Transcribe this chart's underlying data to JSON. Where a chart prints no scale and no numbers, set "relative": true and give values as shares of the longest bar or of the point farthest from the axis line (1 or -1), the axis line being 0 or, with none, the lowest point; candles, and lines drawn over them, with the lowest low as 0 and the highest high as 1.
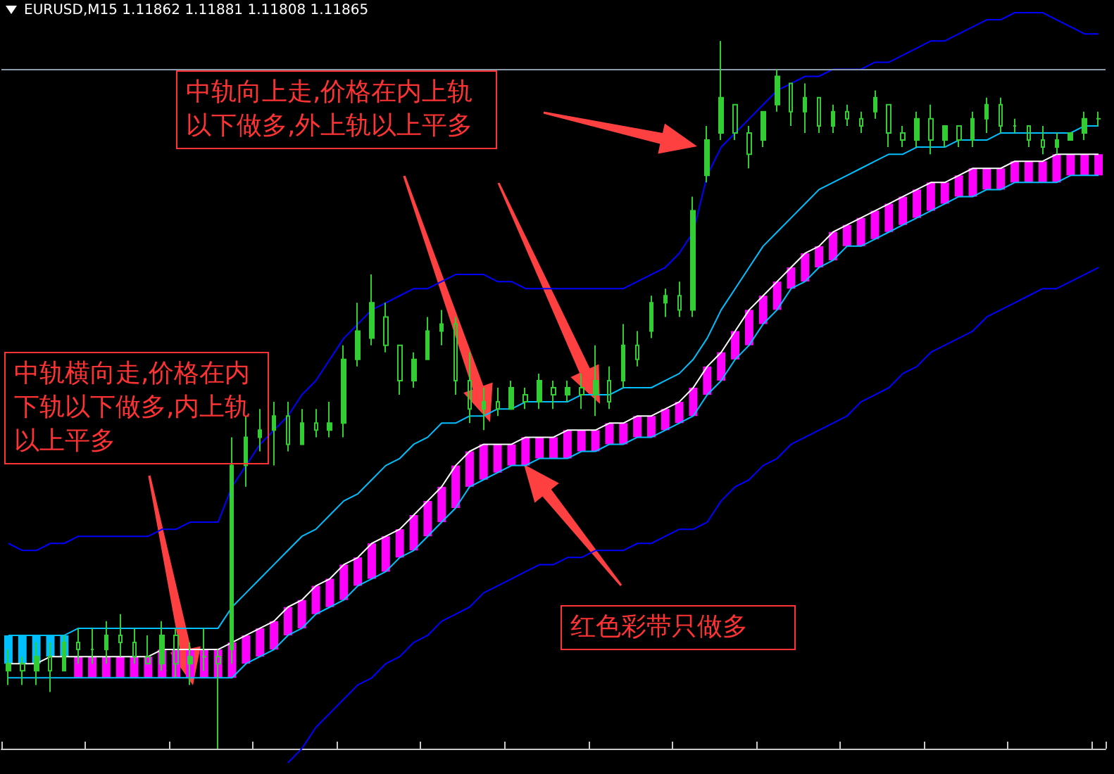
{
  "chart_data": {
    "type": "candlestick",
    "title": "EURUSD,M15  1.11862 1.11881 1.11808 1.11865",
    "relative": true,
    "color": "#32cd32",
    "categories": [
      null,
      null,
      null,
      null,
      null,
      null,
      null,
      null,
      null,
      null,
      null,
      null,
      null,
      null,
      null,
      null,
      null,
      null,
      null,
      null,
      null,
      null,
      null,
      null,
      null,
      null,
      null,
      null,
      null,
      null,
      null,
      null,
      null,
      null,
      null,
      null,
      null,
      null,
      null,
      null,
      null,
      null,
      null,
      null,
      null,
      null,
      null,
      null,
      null,
      null,
      null,
      null,
      null,
      null,
      null,
      null,
      null,
      null,
      null,
      null,
      null,
      null,
      null,
      null,
      null,
      null,
      null,
      null,
      null,
      null,
      null,
      null,
      null,
      null,
      null,
      null,
      null,
      null,
      null
    ],
    "ohlc": [
      [
        0.11,
        0.14,
        0.09,
        0.12
      ],
      [
        0.12,
        0.13,
        0.09,
        0.11
      ],
      [
        0.11,
        0.15,
        0.09,
        0.13
      ],
      [
        0.13,
        0.15,
        0.08,
        0.11
      ],
      [
        0.11,
        0.16,
        0.11,
        0.15
      ],
      [
        0.15,
        0.17,
        0.12,
        0.14
      ],
      [
        0.14,
        0.17,
        0.12,
        0.14
      ],
      [
        0.14,
        0.18,
        0.12,
        0.16
      ],
      [
        0.16,
        0.19,
        0.13,
        0.15
      ],
      [
        0.15,
        0.17,
        0.12,
        0.13
      ],
      [
        0.13,
        0.16,
        0.12,
        0.12
      ],
      [
        0.12,
        0.18,
        0.11,
        0.16
      ],
      [
        0.16,
        0.17,
        0.1,
        0.12
      ],
      [
        0.12,
        0.15,
        0.09,
        0.13
      ],
      [
        0.13,
        0.17,
        0.11,
        0.13
      ],
      [
        0.13,
        0.14,
        0,
        0.12
      ],
      [
        0.14,
        0.44,
        0.12,
        0.4
      ],
      [
        0.4,
        0.47,
        0.37,
        0.44
      ],
      [
        0.44,
        0.48,
        0.42,
        0.45
      ],
      [
        0.45,
        0.49,
        0.4,
        0.47
      ],
      [
        0.47,
        0.49,
        0.42,
        0.43
      ],
      [
        0.43,
        0.48,
        0.43,
        0.46
      ],
      [
        0.46,
        0.48,
        0.44,
        0.45
      ],
      [
        0.45,
        0.49,
        0.44,
        0.46
      ],
      [
        0.46,
        0.57,
        0.44,
        0.55
      ],
      [
        0.55,
        0.63,
        0.54,
        0.59
      ],
      [
        0.58,
        0.67,
        0.57,
        0.63
      ],
      [
        0.61,
        0.63,
        0.56,
        0.57
      ],
      [
        0.57,
        0.57,
        0.5,
        0.52
      ],
      [
        0.52,
        0.56,
        0.51,
        0.55
      ],
      [
        0.55,
        0.61,
        0.55,
        0.59
      ],
      [
        0.59,
        0.62,
        0.57,
        0.6
      ],
      [
        0.6,
        0.61,
        0.5,
        0.52
      ],
      [
        0.52,
        0.56,
        0.46,
        0.48
      ],
      [
        0.48,
        0.51,
        0.45,
        0.49
      ],
      [
        0.49,
        0.51,
        0.47,
        0.48
      ],
      [
        0.48,
        0.52,
        0.48,
        0.51
      ],
      [
        0.5,
        0.51,
        0.48,
        0.49
      ],
      [
        0.49,
        0.53,
        0.48,
        0.52
      ],
      [
        0.51,
        0.52,
        0.48,
        0.5
      ],
      [
        0.5,
        0.52,
        0.49,
        0.51
      ],
      [
        0.51,
        0.53,
        0.48,
        0.5
      ],
      [
        0.5,
        0.57,
        0.47,
        0.52
      ],
      [
        0.52,
        0.54,
        0.48,
        0.49
      ],
      [
        0.52,
        0.6,
        0.51,
        0.57
      ],
      [
        0.57,
        0.59,
        0.54,
        0.55
      ],
      [
        0.59,
        0.64,
        0.58,
        0.63
      ],
      [
        0.63,
        0.65,
        0.61,
        0.64
      ],
      [
        0.64,
        0.66,
        0.61,
        0.62
      ],
      [
        0.62,
        0.78,
        0.61,
        0.76
      ],
      [
        0.81,
        0.88,
        0.8,
        0.86
      ],
      [
        0.87,
        1,
        0.86,
        0.92
      ],
      [
        0.91,
        0.91,
        0.86,
        0.87
      ],
      [
        0.87,
        0.88,
        0.82,
        0.84
      ],
      [
        0.86,
        0.9,
        0.85,
        0.9
      ],
      [
        0.91,
        0.96,
        0.9,
        0.95
      ],
      [
        0.94,
        0.94,
        0.88,
        0.9
      ],
      [
        0.9,
        0.94,
        0.87,
        0.92
      ],
      [
        0.92,
        0.92,
        0.87,
        0.88
      ],
      [
        0.88,
        0.91,
        0.87,
        0.9
      ],
      [
        0.9,
        0.91,
        0.88,
        0.89
      ],
      [
        0.89,
        0.9,
        0.87,
        0.88
      ],
      [
        0.9,
        0.93,
        0.89,
        0.92
      ],
      [
        0.91,
        0.91,
        0.85,
        0.87
      ],
      [
        0.87,
        0.88,
        0.85,
        0.86
      ],
      [
        0.86,
        0.9,
        0.85,
        0.89
      ],
      [
        0.89,
        0.91,
        0.84,
        0.86
      ],
      [
        0.86,
        0.88,
        0.85,
        0.88
      ],
      [
        0.88,
        0.88,
        0.85,
        0.86
      ],
      [
        0.86,
        0.9,
        0.85,
        0.89
      ],
      [
        0.89,
        0.92,
        0.87,
        0.91
      ],
      [
        0.91,
        0.92,
        0.87,
        0.88
      ],
      [
        0.88,
        0.89,
        0.87,
        0.88
      ],
      [
        0.88,
        0.88,
        0.85,
        0.86
      ],
      [
        0.86,
        0.88,
        0.84,
        0.85
      ],
      [
        0.85,
        0.87,
        0.84,
        0.86
      ],
      [
        0.86,
        0.87,
        0.86,
        0.87
      ],
      [
        0.87,
        0.9,
        0.86,
        0.89
      ],
      [
        0.89,
        0.9,
        0.88,
        0.89
      ]
    ],
    "series": [
      {
        "type": "bar",
        "base": [
          0.12,
          0.12,
          0.12,
          0.13,
          0.13,
          0.1,
          0.1,
          0.1,
          0.1,
          0.1,
          0.1,
          0.1,
          0.1,
          0.1,
          0.1,
          0.1,
          0.1,
          0.12,
          0.13,
          0.14,
          0.16,
          0.17,
          0.19,
          0.2,
          0.21,
          0.23,
          0.24,
          0.25,
          0.27,
          0.28,
          0.3,
          0.32,
          0.34,
          0.37,
          0.38,
          0.39,
          0.4,
          0.4,
          0.41,
          0.41,
          0.41,
          0.42,
          0.42,
          0.43,
          0.43,
          0.44,
          0.44,
          0.45,
          0.46,
          0.47,
          0.5,
          0.52,
          0.55,
          0.57,
          0.6,
          0.62,
          0.65,
          0.66,
          0.68,
          0.69,
          0.71,
          0.71,
          0.72,
          0.73,
          0.74,
          0.75,
          0.76,
          0.77,
          0.78,
          0.78,
          0.79,
          0.79,
          0.8,
          0.8,
          0.8,
          0.8,
          0.81,
          0.81,
          0.81
        ],
        "values": [
          0.04,
          0.04,
          0.04,
          0.03,
          0.03,
          0.03,
          0.03,
          0.03,
          0.03,
          0.03,
          0.03,
          0.04,
          0.04,
          0.04,
          0.04,
          0.04,
          0.05,
          0.04,
          0.04,
          0.04,
          0.04,
          0.04,
          0.04,
          0.04,
          0.05,
          0.04,
          0.05,
          0.05,
          0.04,
          0.05,
          0.05,
          0.05,
          0.06,
          0.05,
          0.05,
          0.04,
          0.03,
          0.04,
          0.03,
          0.03,
          0.04,
          0.03,
          0.03,
          0.03,
          0.03,
          0.03,
          0.03,
          0.03,
          0.03,
          0.04,
          0.04,
          0.04,
          0.04,
          0.05,
          0.04,
          0.04,
          0.03,
          0.04,
          0.03,
          0.04,
          0.03,
          0.04,
          0.04,
          0.04,
          0.04,
          0.04,
          0.04,
          0.03,
          0.03,
          0.04,
          0.03,
          0.03,
          0.03,
          0.03,
          0.03,
          0.04,
          0.03,
          0.03,
          0.03
        ],
        "colors": [
          "#00bfff",
          "#00bfff",
          "#00bfff",
          "#00bfff",
          "#00bfff",
          "#ff00ff",
          "#ff00ff",
          "#ff00ff",
          "#ff00ff",
          "#ff00ff",
          "#ff00ff",
          "#ff00ff",
          "#ff00ff",
          "#ff00ff",
          "#ff00ff",
          "#ff00ff",
          "#ff00ff",
          "#ff00ff",
          "#ff00ff",
          "#ff00ff",
          "#ff00ff",
          "#ff00ff",
          "#ff00ff",
          "#ff00ff",
          "#ff00ff",
          "#ff00ff",
          "#ff00ff",
          "#ff00ff",
          "#ff00ff",
          "#ff00ff",
          "#ff00ff",
          "#ff00ff",
          "#ff00ff",
          "#ff00ff",
          "#ff00ff",
          "#ff00ff",
          "#ff00ff",
          "#ff00ff",
          "#ff00ff",
          "#ff00ff",
          "#ff00ff",
          "#ff00ff",
          "#ff00ff",
          "#ff00ff",
          "#ff00ff",
          "#ff00ff",
          "#ff00ff",
          "#ff00ff",
          "#ff00ff",
          "#ff00ff",
          "#ff00ff",
          "#ff00ff",
          "#ff00ff",
          "#ff00ff",
          "#ff00ff",
          "#ff00ff",
          "#ff00ff",
          "#ff00ff",
          "#ff00ff",
          "#ff00ff",
          "#ff00ff",
          "#ff00ff",
          "#ff00ff",
          "#ff00ff",
          "#ff00ff",
          "#ff00ff",
          "#ff00ff",
          "#ff00ff",
          "#ff00ff",
          "#ff00ff",
          "#ff00ff",
          "#ff00ff",
          "#ff00ff",
          "#ff00ff",
          "#ff00ff",
          "#ff00ff",
          "#ff00ff",
          "#ff00ff",
          "#ff00ff"
        ]
      },
      {
        "type": "line",
        "color": "#0000ff",
        "values": [
          0.29,
          0.28,
          0.28,
          0.29,
          0.29,
          0.3,
          0.3,
          0.3,
          0.3,
          0.3,
          0.3,
          0.31,
          0.31,
          0.32,
          0.32,
          0.32,
          0.37,
          0.4,
          0.43,
          0.45,
          0.47,
          0.5,
          0.52,
          0.55,
          0.58,
          0.6,
          0.62,
          0.63,
          0.64,
          0.65,
          0.65,
          0.66,
          0.67,
          0.67,
          0.67,
          0.66,
          0.66,
          0.65,
          0.65,
          0.65,
          0.65,
          0.65,
          0.65,
          0.65,
          0.65,
          0.66,
          0.67,
          0.68,
          0.7,
          0.73,
          0.81,
          0.85,
          0.87,
          0.89,
          0.91,
          0.93,
          0.94,
          0.95,
          0.95,
          0.96,
          0.96,
          0.96,
          0.97,
          0.97,
          0.98,
          0.99,
          1.0,
          1.0,
          1.01,
          1.02,
          1.03,
          1.03,
          1.04,
          1.04,
          1.04,
          1.03,
          1.02,
          1.01,
          1.01
        ]
      },
      {
        "type": "line",
        "color": "#00bfff",
        "values": [
          0.16,
          0.16,
          0.16,
          0.16,
          0.16,
          0.17,
          0.17,
          0.17,
          0.17,
          0.17,
          0.17,
          0.17,
          0.17,
          0.17,
          0.17,
          0.17,
          0.2,
          0.22,
          0.24,
          0.26,
          0.28,
          0.3,
          0.31,
          0.33,
          0.35,
          0.36,
          0.38,
          0.4,
          0.41,
          0.43,
          0.44,
          0.46,
          0.46,
          0.47,
          0.47,
          0.48,
          0.48,
          0.49,
          0.49,
          0.49,
          0.49,
          0.5,
          0.5,
          0.5,
          0.51,
          0.51,
          0.51,
          0.52,
          0.53,
          0.55,
          0.58,
          0.62,
          0.65,
          0.68,
          0.71,
          0.73,
          0.75,
          0.77,
          0.79,
          0.8,
          0.81,
          0.82,
          0.83,
          0.84,
          0.84,
          0.85,
          0.85,
          0.85,
          0.86,
          0.86,
          0.86,
          0.87,
          0.87,
          0.87,
          0.87,
          0.87,
          0.87,
          0.88,
          0.88
        ]
      },
      {
        "type": "line",
        "color": "#ffffff",
        "values": [
          0.12,
          0.12,
          0.12,
          0.13,
          0.13,
          0.13,
          0.13,
          0.13,
          0.13,
          0.13,
          0.13,
          0.14,
          0.14,
          0.14,
          0.14,
          0.14,
          0.15,
          0.16,
          0.17,
          0.18,
          0.2,
          0.21,
          0.23,
          0.24,
          0.26,
          0.27,
          0.29,
          0.3,
          0.31,
          0.33,
          0.35,
          0.37,
          0.4,
          0.42,
          0.43,
          0.43,
          0.43,
          0.44,
          0.44,
          0.44,
          0.45,
          0.45,
          0.45,
          0.46,
          0.46,
          0.47,
          0.47,
          0.48,
          0.49,
          0.51,
          0.54,
          0.56,
          0.59,
          0.62,
          0.64,
          0.66,
          0.68,
          0.7,
          0.71,
          0.73,
          0.74,
          0.75,
          0.76,
          0.77,
          0.78,
          0.79,
          0.8,
          0.8,
          0.81,
          0.82,
          0.82,
          0.82,
          0.83,
          0.83,
          0.83,
          0.84,
          0.84,
          0.84,
          0.84
        ]
      },
      {
        "type": "line",
        "color": "#00bfff",
        "values": [
          0.1,
          0.1,
          0.1,
          0.1,
          0.1,
          0.1,
          0.1,
          0.1,
          0.1,
          0.1,
          0.1,
          0.1,
          0.1,
          0.1,
          0.1,
          0.1,
          0.1,
          0.12,
          0.13,
          0.14,
          0.16,
          0.17,
          0.19,
          0.2,
          0.21,
          0.23,
          0.24,
          0.25,
          0.27,
          0.28,
          0.3,
          0.32,
          0.34,
          0.37,
          0.38,
          0.39,
          0.4,
          0.4,
          0.41,
          0.41,
          0.41,
          0.42,
          0.42,
          0.43,
          0.43,
          0.44,
          0.44,
          0.45,
          0.46,
          0.47,
          0.5,
          0.52,
          0.55,
          0.57,
          0.6,
          0.62,
          0.65,
          0.66,
          0.68,
          0.69,
          0.71,
          0.71,
          0.72,
          0.73,
          0.74,
          0.75,
          0.76,
          0.77,
          0.78,
          0.78,
          0.79,
          0.79,
          0.8,
          0.8,
          0.8,
          0.8,
          0.81,
          0.81,
          0.81
        ]
      },
      {
        "type": "line",
        "color": "#0000ff",
        "values": [
          null,
          null,
          null,
          null,
          null,
          null,
          null,
          null,
          null,
          null,
          null,
          null,
          null,
          null,
          null,
          null,
          null,
          null,
          null,
          null,
          -0.02,
          0.0,
          0.03,
          0.05,
          0.07,
          0.09,
          0.1,
          0.12,
          0.13,
          0.15,
          0.16,
          0.18,
          0.19,
          0.2,
          0.22,
          0.23,
          0.24,
          0.25,
          0.26,
          0.26,
          0.27,
          0.27,
          0.28,
          0.28,
          0.28,
          0.29,
          0.29,
          0.3,
          0.31,
          0.31,
          0.32,
          0.35,
          0.37,
          0.38,
          0.4,
          0.41,
          0.43,
          0.44,
          0.45,
          0.46,
          0.47,
          0.49,
          0.5,
          0.51,
          0.53,
          0.54,
          0.56,
          0.57,
          0.58,
          0.59,
          0.61,
          0.62,
          0.63,
          0.64,
          0.65,
          0.65,
          0.66,
          0.67,
          0.68
        ]
      }
    ],
    "ref_lines": [
      {
        "axis": "y",
        "value": 0.96,
        "color": "#8c9bab"
      }
    ],
    "annotations": [
      "中轨向上走,价格在内上轨以下做多,外上轨以上平多",
      "中轨横向走,价格在内下轨以下做多,内上轨以上平多",
      "红色彩带只做多"
    ]
  }
}
